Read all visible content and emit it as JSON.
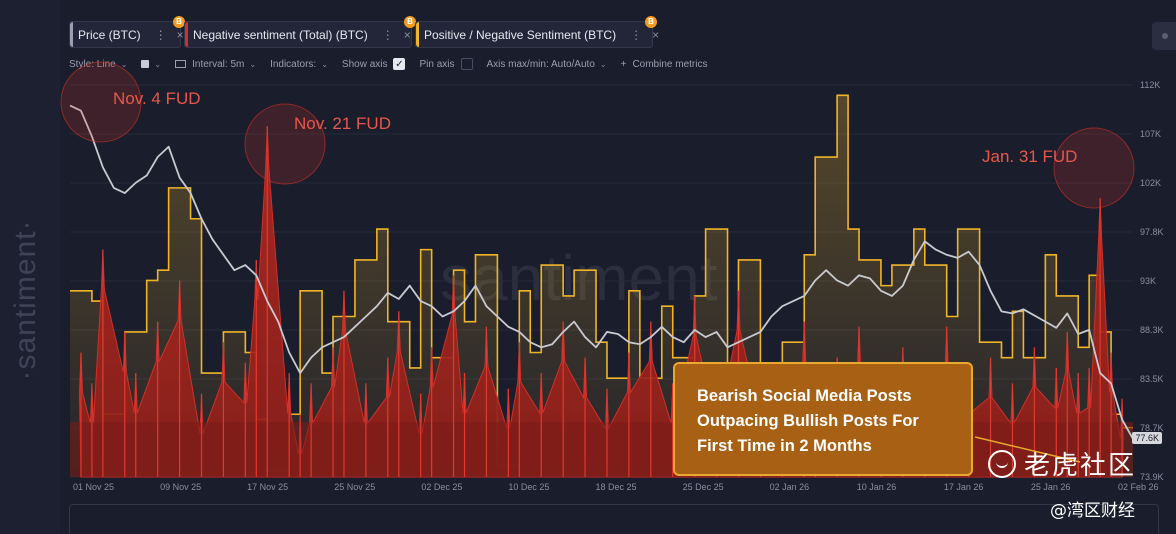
{
  "tabs": [
    {
      "label": "Price (BTC)",
      "accent": "#9a9eb0"
    },
    {
      "label": "Negative sentiment (Total) (BTC)",
      "accent": "#d0302a"
    },
    {
      "label": "Positive / Negative Sentiment (BTC)",
      "accent": "#f0b429"
    }
  ],
  "tab_dots": "⋮",
  "tab_close": "×",
  "coin_symbol": "B",
  "toolbar": {
    "style": "Style: Line",
    "interval": "Interval: 5m",
    "indicators": "Indicators:",
    "show_axis": "Show axis",
    "show_axis_check": "✓",
    "pin_axis": "Pin axis",
    "axis_minmax": "Axis max/min: Auto/Auto",
    "combine": "Combine metrics",
    "caret": "⌄",
    "plus": "+"
  },
  "brand_vertical": "·santiment·",
  "brand_cn": "老虎社区",
  "sub_brand": "@湾区财经",
  "price_tag": "77.6K",
  "callout": {
    "line1": "Bearish Social Media Posts",
    "line2": "Outpacing Bullish Posts For",
    "line3": "First Time in 2 Months"
  },
  "chart_data": {
    "type": "line",
    "title": "",
    "watermark": "santiment",
    "x_ticks": [
      "01 Nov 25",
      "09 Nov 25",
      "17 Nov 25",
      "25 Nov 25",
      "02 Dec 25",
      "10 Dec 25",
      "18 Dec 25",
      "25 Dec 25",
      "02 Jan 26",
      "10 Jan 26",
      "17 Jan 26",
      "25 Jan 26",
      "02 Feb 26"
    ],
    "y_ticks": [
      "112K",
      "107K",
      "102K",
      "97.8K",
      "93K",
      "88.3K",
      "83.5K",
      "78.7K",
      "73.9K"
    ],
    "ylim": [
      73900,
      112000
    ],
    "x_days": [
      0,
      97
    ],
    "series": [
      {
        "name": "Price (BTC)",
        "color": "#c8cad0",
        "x": [
          0,
          1,
          2,
          3,
          4,
          5,
          6,
          7,
          8,
          9,
          10,
          11,
          12,
          13,
          14,
          15,
          16,
          17,
          18,
          19,
          20,
          21,
          22,
          23,
          24,
          25,
          26,
          27,
          28,
          29,
          30,
          31,
          32,
          33,
          34,
          35,
          36,
          37,
          38,
          39,
          40,
          41,
          42,
          43,
          44,
          45,
          46,
          47,
          48,
          49,
          50,
          51,
          52,
          53,
          54,
          55,
          56,
          57,
          58,
          59,
          60,
          61,
          62,
          63,
          64,
          65,
          66,
          67,
          68,
          69,
          70,
          71,
          72,
          73,
          74,
          75,
          76,
          77,
          78,
          79,
          80,
          81,
          82,
          83,
          84,
          85,
          86,
          87,
          88,
          89,
          90,
          91,
          92,
          93,
          94,
          95,
          96,
          97
        ],
        "values": [
          110000,
          109500,
          107000,
          104000,
          102000,
          101500,
          102500,
          103200,
          105000,
          106000,
          103000,
          101500,
          99000,
          97000,
          95500,
          94000,
          94500,
          93500,
          91000,
          89000,
          86000,
          84000,
          85500,
          86500,
          87000,
          87500,
          88500,
          89500,
          90500,
          91800,
          91200,
          92500,
          91000,
          90500,
          89500,
          90000,
          91000,
          92500,
          90500,
          89500,
          88500,
          88000,
          87000,
          86500,
          86800,
          88000,
          89000,
          87500,
          86500,
          88000,
          87800,
          87000,
          86800,
          87500,
          88500,
          87500,
          87000,
          88200,
          87500,
          88000,
          86500,
          87000,
          87500,
          88000,
          89500,
          90500,
          91000,
          91500,
          93000,
          94000,
          93000,
          92500,
          93500,
          93200,
          92000,
          91500,
          92500,
          95000,
          96800,
          96000,
          95500,
          95200,
          95800,
          94500,
          92000,
          90000,
          89800,
          90200,
          89600,
          89000,
          88400,
          89800,
          87800,
          88200,
          84000,
          83000,
          79500,
          77600
        ]
      },
      {
        "name": "Positive / Negative Sentiment (BTC)",
        "color": "#f0b429",
        "step": "after",
        "x": [
          0,
          2,
          3,
          5,
          7,
          8,
          9,
          11,
          12,
          14,
          16,
          17,
          18,
          20,
          21,
          23,
          24,
          26,
          28,
          29,
          31,
          32,
          33,
          35,
          36,
          37,
          39,
          41,
          42,
          43,
          45,
          46,
          48,
          49,
          51,
          52,
          54,
          55,
          57,
          58,
          60,
          61,
          63,
          65,
          67,
          68,
          70,
          71,
          72,
          74,
          75,
          77,
          78,
          80,
          81,
          83,
          85,
          86,
          87,
          89,
          90,
          92,
          93,
          94,
          95,
          96
        ],
        "values": [
          92000,
          91000,
          80000,
          88000,
          93000,
          94000,
          102000,
          99000,
          84000,
          88000,
          86000,
          79500,
          74500,
          80000,
          92000,
          84000,
          89500,
          95000,
          98000,
          89000,
          84500,
          96000,
          85500,
          94000,
          89000,
          95500,
          75000,
          92000,
          86000,
          94500,
          91500,
          94000,
          87000,
          83500,
          92000,
          83500,
          90500,
          85500,
          91500,
          98000,
          84500,
          95000,
          82000,
          87000,
          95500,
          105000,
          111000,
          98000,
          95000,
          92500,
          94500,
          98000,
          94500,
          89500,
          98000,
          87000,
          85500,
          90000,
          85500,
          95500,
          91500,
          86500,
          93500,
          88000,
          80000,
          78700
        ]
      },
      {
        "name": "Negative sentiment (Total) (BTC)",
        "color": "#d0302a",
        "x": [
          1,
          2,
          3,
          5,
          6,
          8,
          10,
          12,
          14,
          16,
          17,
          18,
          20,
          21,
          22,
          24,
          25,
          27,
          29,
          30,
          32,
          33,
          35,
          36,
          38,
          40,
          41,
          43,
          45,
          47,
          49,
          51,
          53,
          55,
          57,
          59,
          61,
          63,
          65,
          67,
          68,
          70,
          72,
          74,
          76,
          78,
          80,
          82,
          84,
          86,
          88,
          90,
          91,
          92,
          93,
          94,
          95,
          96
        ],
        "values": [
          86000,
          83000,
          96000,
          88000,
          84000,
          89000,
          93000,
          82000,
          87000,
          85000,
          95000,
          108000,
          84000,
          80000,
          83000,
          86500,
          92000,
          83000,
          85500,
          90000,
          82000,
          86500,
          93500,
          84000,
          88500,
          82500,
          87000,
          84000,
          89000,
          85500,
          82500,
          86000,
          89000,
          83000,
          91500,
          83000,
          92000,
          84000,
          85000,
          89000,
          82000,
          85500,
          88500,
          83500,
          86500,
          83000,
          88500,
          84000,
          85500,
          83000,
          86500,
          84500,
          88000,
          84000,
          84500,
          101000,
          86000,
          81500
        ]
      }
    ],
    "annotations": [
      {
        "label": "Nov. 4 FUD",
        "day": 4
      },
      {
        "label": "Nov. 21 FUD",
        "day": 19
      },
      {
        "label": "Jan. 31 FUD",
        "day": 93
      }
    ]
  }
}
